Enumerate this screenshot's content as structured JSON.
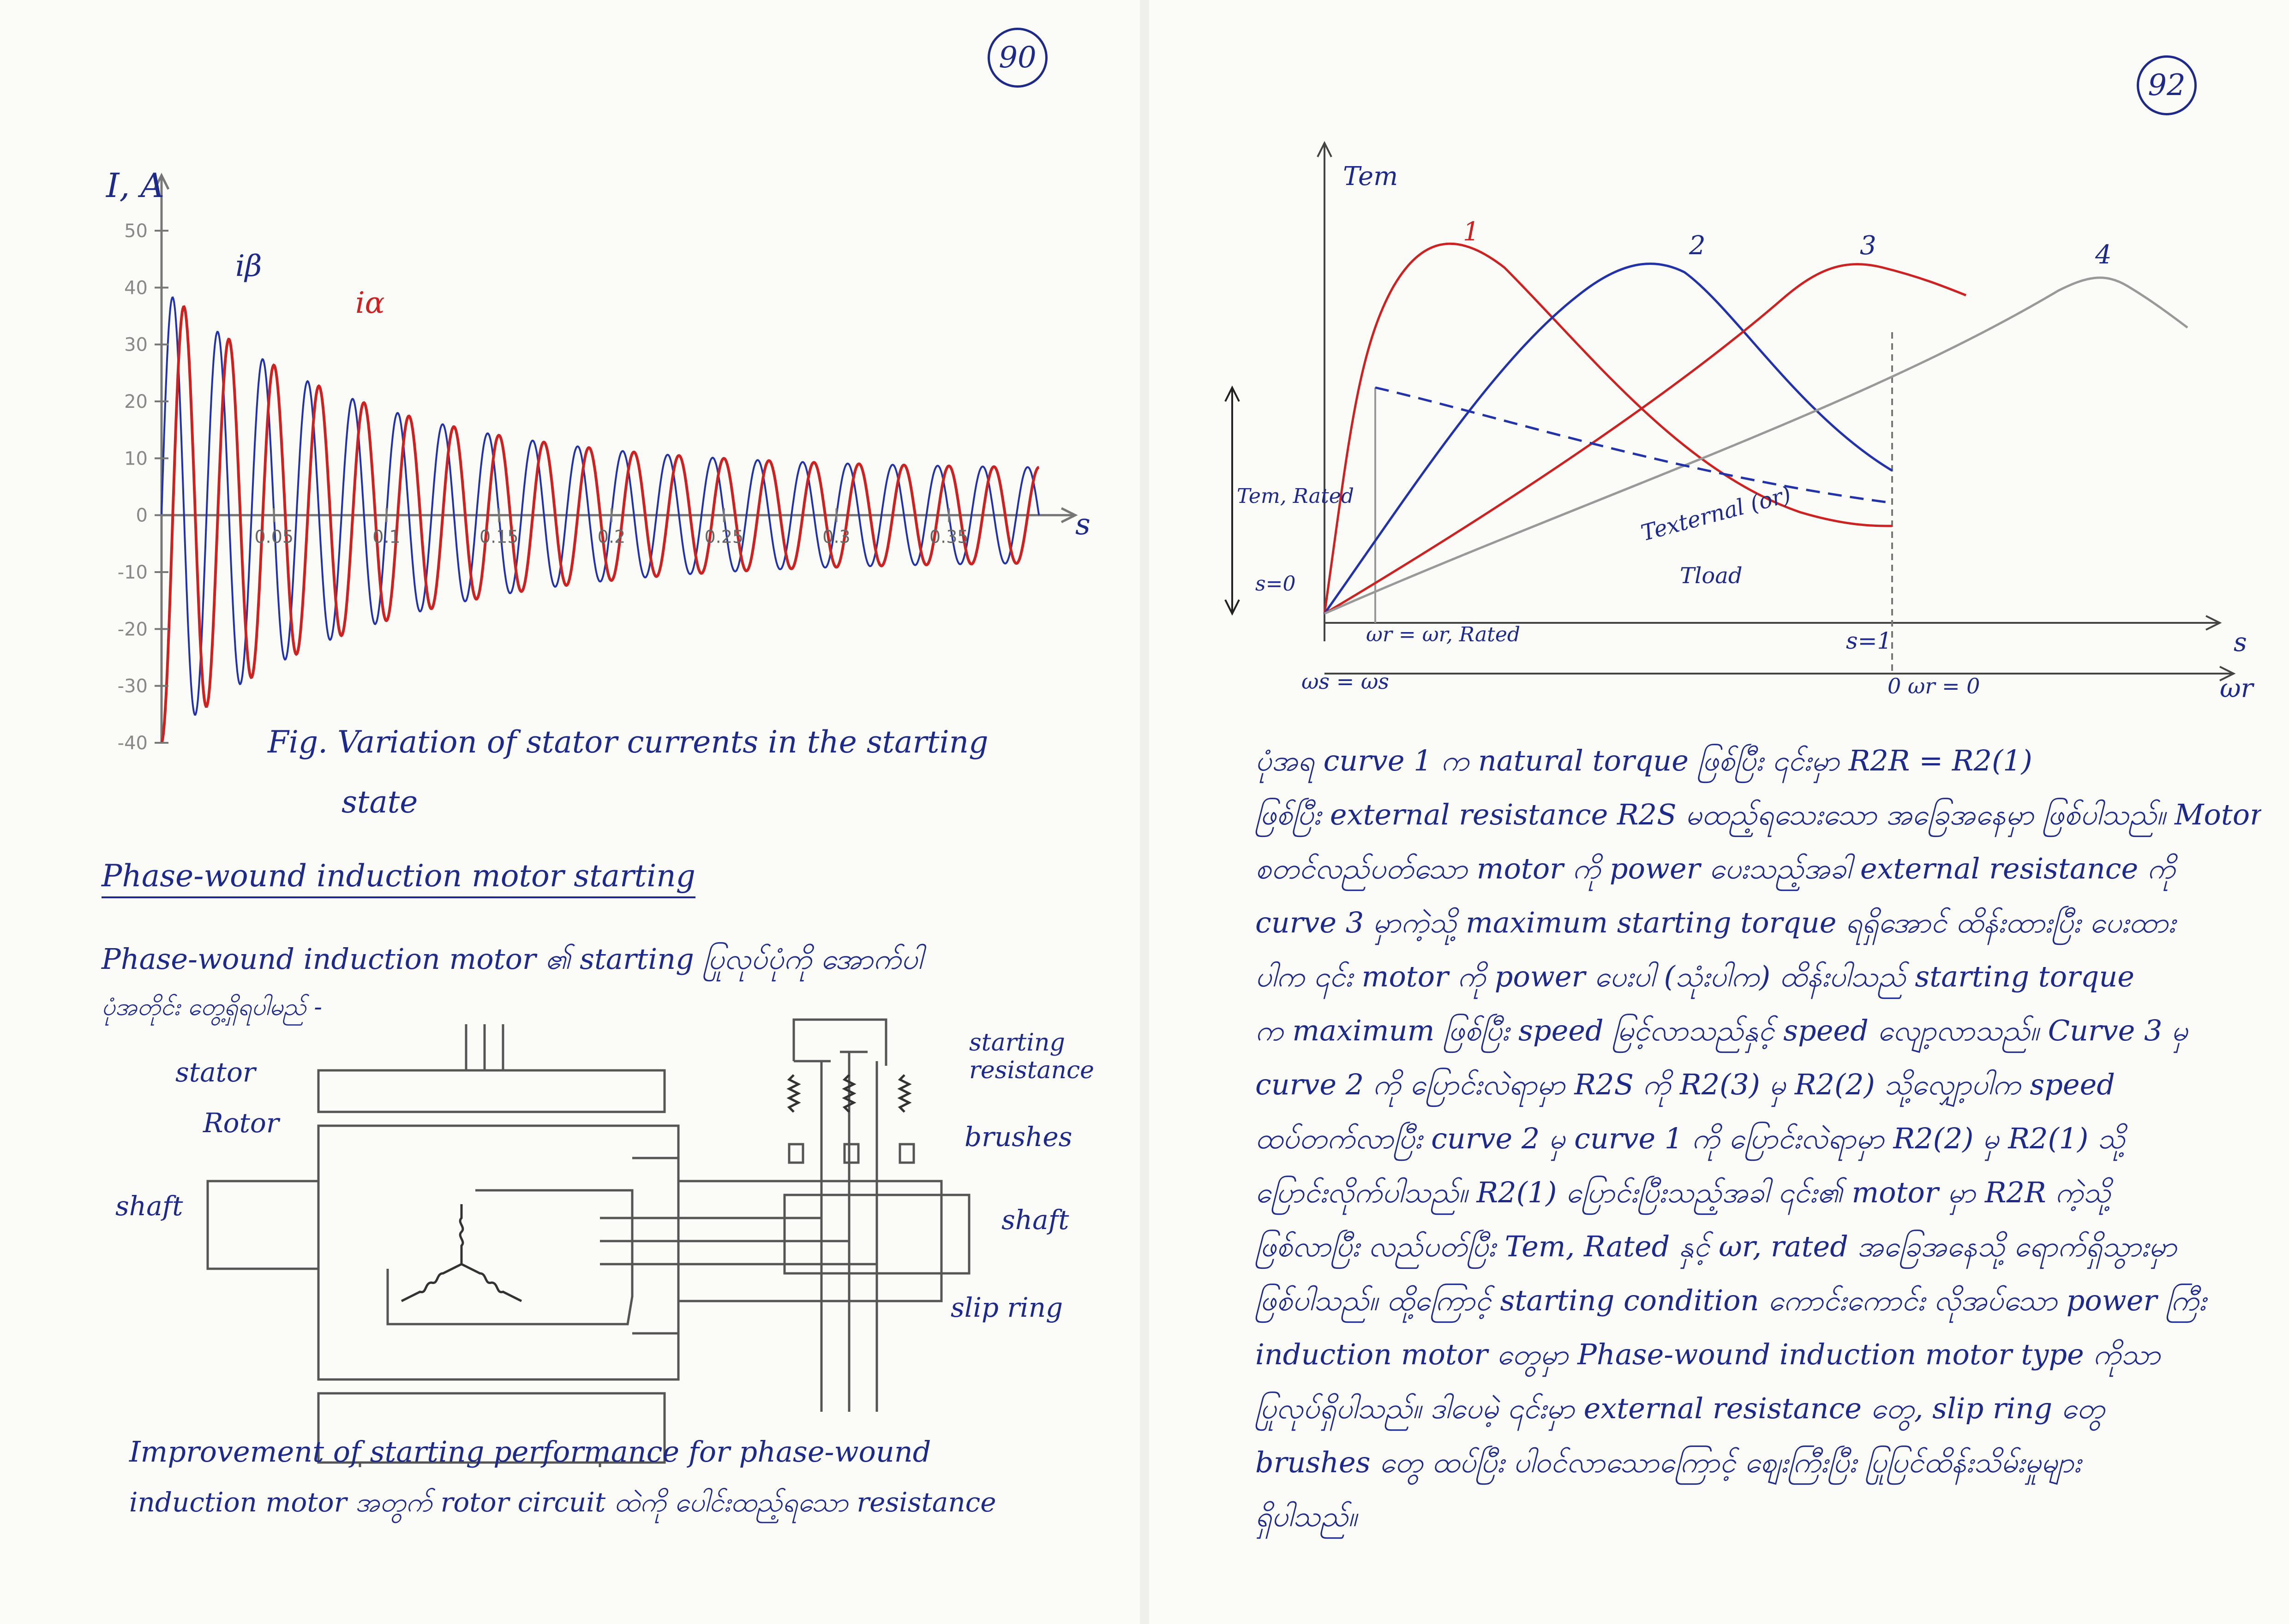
{
  "left_page": {
    "page_number": "90",
    "chart_labels": {
      "ylabel": "I, A",
      "xlabel": "s",
      "series_beta": "iβ",
      "series_alpha": "iα",
      "y_ticks": [
        "50",
        "40",
        "30",
        "20",
        "10",
        "0",
        "-10",
        "-20",
        "-30",
        "-40"
      ],
      "x_ticks": [
        "0.05",
        "0.1",
        "0.15",
        "0.2",
        "0.25",
        "0.3",
        "0.35"
      ]
    },
    "caption_line1": "Fig. Variation of stator currents in the starting",
    "caption_line2": "state",
    "section_heading": "Phase-wound induction motor starting",
    "intro_line1": "Phase-wound induction motor ၏ starting ပြုလုပ်ပုံကို အောက်ပါ",
    "intro_line2": "ပုံအတိုင်း တွေ့ရှိရပါမည် -",
    "diagram_labels": {
      "stator": "stator",
      "rotor": "Rotor",
      "shaft_left": "shaft",
      "starting_resistance": "starting resistance",
      "brushes": "brushes",
      "shaft_right": "shaft",
      "slip_ring": "slip ring"
    },
    "bottom_line1": "Improvement of starting performance for phase-wound",
    "bottom_line2": "induction motor အတွက် rotor circuit ထဲကို ပေါင်းထည့်ရသော resistance"
  },
  "right_page": {
    "page_number": "92",
    "graph_labels": {
      "y_axis": "Tem",
      "x_axis_s": "s",
      "x_axis_w": "ωr",
      "curve_1": "1",
      "curve_2": "2",
      "curve_3": "3",
      "curve_4": "4",
      "tem_rated": "Tem, Rated",
      "s0": "s=0",
      "s1": "s=1",
      "wr_rated": "ωr = ωr, Rated",
      "ws": "ωs = ωs",
      "wr0": "0 ωr = 0",
      "t_external": "Texternal (or)",
      "t_load": "Tload"
    },
    "paragraph_lines": [
      "ပုံအရ curve 1 က natural torque ဖြစ်ပြီး ၎င်းမှာ R2R = R2(1)",
      "ဖြစ်ပြီး external resistance R2S မထည့်ရသေးသော အခြေအနေမှာ ဖြစ်ပါသည်။ Motor",
      "စတင်လည်ပတ်သော motor ကို power ပေးသည့်အခါ external resistance ကို",
      "curve 3 မှာကဲ့သို့ maximum starting torque ရရှိအောင် ထိန်းထားပြီး ပေးထား",
      "ပါက ၎င်း motor ကို power ပေးပါ (သုံးပါက) ထိန်းပါသည် starting torque",
      "က maximum ဖြစ်ပြီး speed မြင့်လာသည်နှင့် speed လျော့လာသည်။ Curve 3 မှ",
      "curve 2 ကို ပြောင်းလဲရာမှာ R2S ကို R2(3) မှ R2(2) သို့လျှော့ပါက speed",
      "ထပ်တက်လာပြီး curve 2 မှ curve 1 ကို ပြောင်းလဲရာမှာ R2(2) မှ R2(1) သို့",
      "ပြောင်းလိုက်ပါသည်။ R2(1) ပြောင်းပြီးသည့်အခါ ၎င်း၏ motor မှာ R2R ကဲ့သို့",
      "ဖြစ်လာပြီး လည်ပတ်ပြီး Tem, Rated နှင့် ωr, rated အခြေအနေသို့ ရောက်ရှိသွားမှာ",
      "ဖြစ်ပါသည်။ ထို့ကြောင့် starting condition ကောင်းကောင်း လိုအပ်သော power ကြီး",
      "induction motor တွေမှာ Phase-wound induction motor type ကိုသာ",
      "ပြုလုပ်ရှိပါသည်။ ဒါပေမဲ့ ၎င်းမှာ external resistance တွေ, slip ring တွေ",
      "brushes တွေ ထပ်ပြီး ပါဝင်လာသောကြောင့် စျေးကြီးပြီး ပြုပြင်ထိန်းသိမ်းမှုများ",
      "ရှိပါသည်။"
    ]
  },
  "chart_data": [
    {
      "type": "line",
      "title": "Fig. Variation of stator currents in the starting state",
      "xlabel": "s",
      "ylabel": "I, A",
      "ylim": [
        -40,
        50
      ],
      "xlim": [
        0,
        0.4
      ],
      "x_ticks": [
        0.05,
        0.1,
        0.15,
        0.2,
        0.25,
        0.3,
        0.35
      ],
      "series": [
        {
          "name": "iβ",
          "color": "#2233aa",
          "peak": 40,
          "tail": 8
        },
        {
          "name": "iα",
          "color": "#cc2222",
          "peak": 40,
          "tail": 8
        }
      ]
    },
    {
      "type": "line",
      "ylabel": "Tem",
      "xlabel": "s",
      "series": [
        {
          "name": "1",
          "color": "#cc2222"
        },
        {
          "name": "2",
          "color": "#2233aa"
        },
        {
          "name": "3",
          "color": "#cc2222"
        },
        {
          "name": "4",
          "color": "#999999"
        }
      ]
    }
  ]
}
